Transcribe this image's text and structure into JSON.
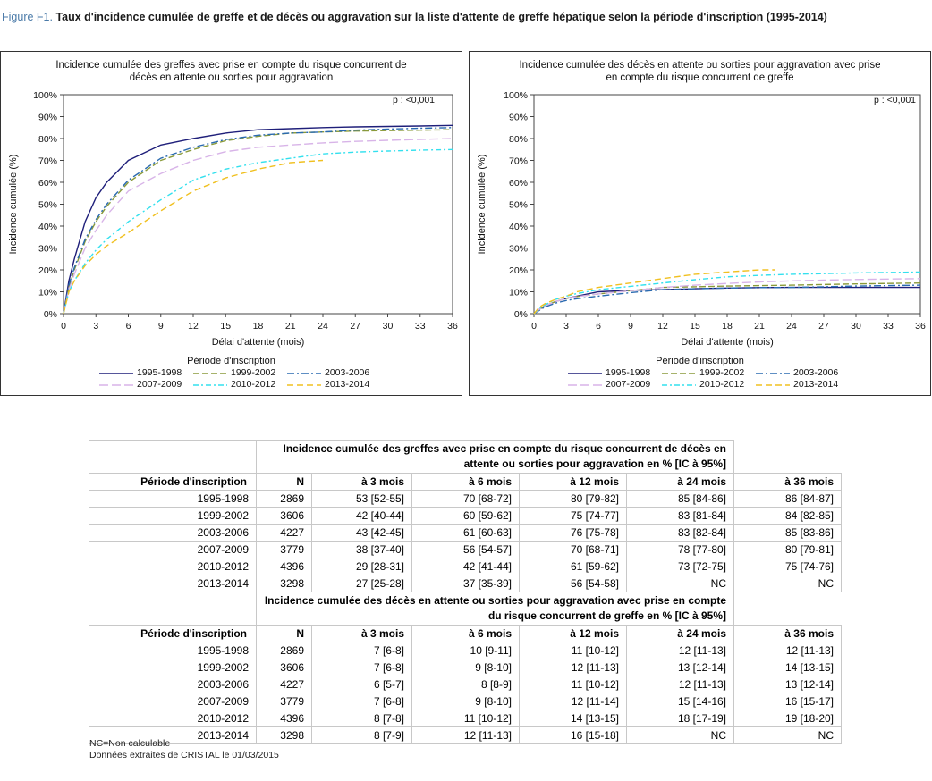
{
  "figure": {
    "number": "Figure F1.",
    "title": "Taux d'incidence cumulée de greffe et de décès ou aggravation sur la liste d'attente de greffe hépatique selon la période d'inscription (1995-2014)"
  },
  "legend": {
    "title": "Période d'inscription",
    "series": [
      "1995-1998",
      "1999-2002",
      "2003-2006",
      "2007-2009",
      "2010-2012",
      "2013-2014"
    ],
    "colors": [
      "#1f1f7a",
      "#8a9a3a",
      "#2a6ab0",
      "#d8b4e8",
      "#33e0ee",
      "#f0c020"
    ]
  },
  "chart_data": [
    {
      "type": "line",
      "title": "Incidence cumulée des greffes avec prise en compte du risque concurrent de décès en attente ou sorties pour aggravation",
      "xlabel": "Délai d'attente (mois)",
      "ylabel": "Incidence cumulée (%)",
      "annotation": "p : <0,001",
      "xlim": [
        0,
        36
      ],
      "ylim": [
        0,
        100
      ],
      "xticks": [
        "0",
        "3",
        "6",
        "9",
        "12",
        "15",
        "18",
        "21",
        "24",
        "27",
        "30",
        "33",
        "36"
      ],
      "yticks": [
        "0%",
        "10%",
        "20%",
        "30%",
        "40%",
        "50%",
        "60%",
        "70%",
        "80%",
        "90%",
        "100%"
      ],
      "grid": false,
      "series": [
        {
          "name": "1995-1998",
          "x": [
            0,
            0.5,
            1,
            2,
            3,
            4,
            6,
            9,
            12,
            15,
            18,
            21,
            24,
            27,
            30,
            33,
            36
          ],
          "y": [
            0,
            15,
            25,
            42,
            53,
            60,
            70,
            77,
            80,
            82.5,
            84,
            84.5,
            85,
            85.3,
            85.5,
            85.7,
            86
          ]
        },
        {
          "name": "1999-2002",
          "x": [
            0,
            0.5,
            1,
            2,
            3,
            4,
            6,
            9,
            12,
            15,
            18,
            21,
            24,
            27,
            30,
            33,
            36
          ],
          "y": [
            0,
            12,
            20,
            33,
            42,
            49,
            60,
            70,
            75,
            79,
            81,
            82.5,
            83,
            83.4,
            83.6,
            83.8,
            84
          ]
        },
        {
          "name": "2003-2006",
          "x": [
            0,
            0.5,
            1,
            2,
            3,
            4,
            6,
            9,
            12,
            15,
            18,
            21,
            24,
            27,
            30,
            33,
            36
          ],
          "y": [
            0,
            13,
            21,
            34,
            43,
            50,
            61,
            71,
            76,
            79.5,
            81.5,
            82.5,
            83,
            83.8,
            84.3,
            84.7,
            85
          ]
        },
        {
          "name": "2007-2009",
          "x": [
            0,
            0.5,
            1,
            2,
            3,
            4,
            6,
            9,
            12,
            15,
            18,
            21,
            24,
            27,
            30,
            33,
            36
          ],
          "y": [
            0,
            11,
            18,
            30,
            38,
            45,
            56,
            64,
            70,
            74,
            76,
            77,
            78,
            78.7,
            79.2,
            79.6,
            80
          ]
        },
        {
          "name": "2010-2012",
          "x": [
            0,
            0.5,
            1,
            2,
            3,
            4,
            6,
            9,
            12,
            15,
            18,
            21,
            24,
            27,
            30,
            33,
            36
          ],
          "y": [
            0,
            10,
            15,
            23,
            29,
            34,
            42,
            52,
            61,
            66,
            69,
            71,
            73,
            73.8,
            74.3,
            74.7,
            75
          ]
        },
        {
          "name": "2013-2014",
          "x": [
            0,
            0.5,
            1,
            2,
            3,
            4,
            6,
            9,
            12,
            15,
            18,
            21,
            24
          ],
          "y": [
            0,
            10,
            15,
            22,
            27,
            31,
            37,
            47,
            56,
            62,
            66,
            69,
            70
          ]
        }
      ]
    },
    {
      "type": "line",
      "title": "Incidence cumulée des décès en attente ou sorties pour aggravation avec prise en compte du risque concurrent de greffe",
      "xlabel": "Délai d'attente (mois)",
      "ylabel": "Incidence cumulée (%)",
      "annotation": "p : <0,001",
      "xlim": [
        0,
        36
      ],
      "ylim": [
        0,
        100
      ],
      "xticks": [
        "0",
        "3",
        "6",
        "9",
        "12",
        "15",
        "18",
        "21",
        "24",
        "27",
        "30",
        "33",
        "36"
      ],
      "yticks": [
        "0%",
        "10%",
        "20%",
        "30%",
        "40%",
        "50%",
        "60%",
        "70%",
        "80%",
        "90%",
        "100%"
      ],
      "grid": false,
      "series": [
        {
          "name": "1995-1998",
          "x": [
            0,
            0.5,
            1,
            2,
            3,
            4,
            6,
            9,
            12,
            15,
            18,
            21,
            24,
            27,
            30,
            33,
            36
          ],
          "y": [
            0,
            2,
            3.5,
            5.5,
            7,
            8,
            10,
            10.7,
            11,
            11.4,
            11.7,
            11.9,
            12,
            12,
            12,
            12,
            12
          ]
        },
        {
          "name": "1999-2002",
          "x": [
            0,
            0.5,
            1,
            2,
            3,
            4,
            6,
            9,
            12,
            15,
            18,
            21,
            24,
            27,
            30,
            33,
            36
          ],
          "y": [
            0,
            2,
            3.5,
            5.5,
            7,
            7.8,
            9,
            10.5,
            12,
            12.3,
            12.6,
            12.8,
            13,
            13.3,
            13.6,
            13.8,
            14
          ]
        },
        {
          "name": "2003-2006",
          "x": [
            0,
            0.5,
            1,
            2,
            3,
            4,
            6,
            9,
            12,
            15,
            18,
            21,
            24,
            27,
            30,
            33,
            36
          ],
          "y": [
            0,
            1.5,
            3,
            4.8,
            6,
            6.8,
            8,
            9.6,
            11,
            11.4,
            11.7,
            11.9,
            12,
            12.3,
            12.6,
            12.8,
            13
          ]
        },
        {
          "name": "2007-2009",
          "x": [
            0,
            0.5,
            1,
            2,
            3,
            4,
            6,
            9,
            12,
            15,
            18,
            21,
            24,
            27,
            30,
            33,
            36
          ],
          "y": [
            0,
            2,
            3.5,
            5.5,
            7,
            7.8,
            9,
            10.5,
            12,
            13,
            13.8,
            14.5,
            15,
            15.3,
            15.6,
            15.8,
            16
          ]
        },
        {
          "name": "2010-2012",
          "x": [
            0,
            0.5,
            1,
            2,
            3,
            4,
            6,
            9,
            12,
            15,
            18,
            21,
            24,
            27,
            30,
            33,
            36
          ],
          "y": [
            0,
            2.5,
            4,
            6.5,
            8,
            9.2,
            11,
            12.5,
            14,
            15.5,
            16.8,
            17.5,
            18,
            18.3,
            18.6,
            18.8,
            19
          ]
        },
        {
          "name": "2013-2014",
          "x": [
            0,
            0.5,
            1,
            2,
            3,
            4,
            6,
            9,
            12,
            15,
            18,
            21,
            22.5
          ],
          "y": [
            0,
            3,
            4.5,
            6.5,
            8,
            10,
            12,
            14,
            16,
            18,
            19,
            20,
            20
          ]
        }
      ]
    }
  ],
  "table": {
    "section1_header": "Incidence cumulée des greffes avec prise en compte du risque concurrent de décès en attente ou sorties pour aggravation en % [IC à 95%]",
    "section2_header": "Incidence cumulée des décès en attente ou sorties pour aggravation avec prise en compte du risque concurrent de greffe en % [IC à 95%]",
    "columns": [
      "Période d'inscription",
      "N",
      "à 3 mois",
      "à 6 mois",
      "à 12 mois",
      "à 24 mois",
      "à 36 mois"
    ],
    "section1_rows": [
      [
        "1995-1998",
        "2869",
        "53 [52-55]",
        "70 [68-72]",
        "80 [79-82]",
        "85 [84-86]",
        "86 [84-87]"
      ],
      [
        "1999-2002",
        "3606",
        "42 [40-44]",
        "60 [59-62]",
        "75 [74-77]",
        "83 [81-84]",
        "84 [82-85]"
      ],
      [
        "2003-2006",
        "4227",
        "43 [42-45]",
        "61 [60-63]",
        "76 [75-78]",
        "83 [82-84]",
        "85 [83-86]"
      ],
      [
        "2007-2009",
        "3779",
        "38 [37-40]",
        "56 [54-57]",
        "70 [68-71]",
        "78 [77-80]",
        "80 [79-81]"
      ],
      [
        "2010-2012",
        "4396",
        "29 [28-31]",
        "42 [41-44]",
        "61 [59-62]",
        "73 [72-75]",
        "75 [74-76]"
      ],
      [
        "2013-2014",
        "3298",
        "27 [25-28]",
        "37 [35-39]",
        "56 [54-58]",
        "NC",
        "NC"
      ]
    ],
    "section2_rows": [
      [
        "1995-1998",
        "2869",
        "7 [6-8]",
        "10 [9-11]",
        "11 [10-12]",
        "12 [11-13]",
        "12 [11-13]"
      ],
      [
        "1999-2002",
        "3606",
        "7 [6-8]",
        "9 [8-10]",
        "12 [11-13]",
        "13 [12-14]",
        "14 [13-15]"
      ],
      [
        "2003-2006",
        "4227",
        "6 [5-7]",
        "8 [8-9]",
        "11 [10-12]",
        "12 [11-13]",
        "13 [12-14]"
      ],
      [
        "2007-2009",
        "3779",
        "7 [6-8]",
        "9 [8-10]",
        "12 [11-14]",
        "15 [14-16]",
        "16 [15-17]"
      ],
      [
        "2010-2012",
        "4396",
        "8 [7-8]",
        "11 [10-12]",
        "14 [13-15]",
        "18 [17-19]",
        "19 [18-20]"
      ],
      [
        "2013-2014",
        "3298",
        "8 [7-9]",
        "12 [11-13]",
        "16 [15-18]",
        "NC",
        "NC"
      ]
    ]
  },
  "notes": [
    "NC=Non calculable",
    "Données extraites de CRISTAL le 01/03/2015"
  ]
}
